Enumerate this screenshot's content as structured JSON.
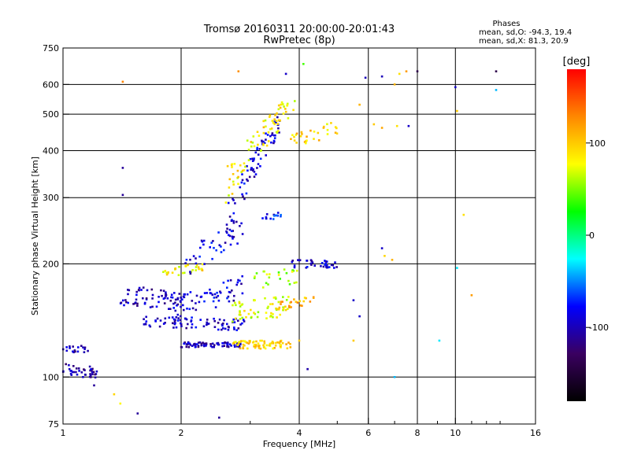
{
  "chart_data": {
    "type": "scatter",
    "title": "Tromsø 20160311 20:00:00-20:01:43",
    "subtitle": "RwPretec (8p)",
    "xlabel": "Frequency [MHz]",
    "ylabel": "Stationary phase Virtual Height [km]",
    "x_scale": "log",
    "y_scale": "log",
    "xlim": [
      1,
      16
    ],
    "ylim": [
      75,
      750
    ],
    "x_ticks": [
      1,
      2,
      4,
      6,
      8,
      10,
      16
    ],
    "x_tick_labels": [
      "1",
      "2",
      "4",
      "6",
      "8",
      "10",
      "16"
    ],
    "x_minor_ticks": [
      3,
      5,
      7,
      9,
      11,
      12,
      13
    ],
    "y_ticks": [
      75,
      100,
      200,
      300,
      400,
      500,
      600,
      750
    ],
    "y_tick_labels": [
      "75",
      "100",
      "200",
      "300",
      "400",
      "500",
      "600",
      "750"
    ],
    "grid": true,
    "colorbar": {
      "label": "[deg]",
      "range": [
        -180,
        180
      ],
      "tick_values": [
        100,
        0,
        -100
      ],
      "tick_labels": [
        "100",
        "0",
        "-100"
      ],
      "colormap": [
        "#000000",
        "#3a0060",
        "#0000ff",
        "#00ffff",
        "#00ff00",
        "#ffff00",
        "#ff8800",
        "#ff0000"
      ]
    },
    "legend": {
      "title": "Phases",
      "lines": [
        "mean, sd,O: -94.3, 19.4",
        "mean, sd,X:  81.3, 20.9"
      ],
      "placement": "top-right"
    },
    "traces": [
      {
        "f": [
          1.0,
          1.22
        ],
        "h": [
          105,
          102
        ],
        "phase": -105,
        "count": 40,
        "h_spread": 4
      },
      {
        "f": [
          1.0,
          1.2
        ],
        "h": [
          120,
          118
        ],
        "phase": -105,
        "count": 18,
        "h_spread": 3
      },
      {
        "f": [
          1.4,
          2.05
        ],
        "h": [
          165,
          160
        ],
        "phase": -100,
        "count": 70,
        "h_spread": 10
      },
      {
        "f": [
          1.6,
          2.9
        ],
        "h": [
          140,
          138
        ],
        "phase": -95,
        "count": 80,
        "h_spread": 5
      },
      {
        "f": [
          2.0,
          2.9
        ],
        "h": [
          122,
          122
        ],
        "phase": -100,
        "count": 70,
        "h_spread": 2
      },
      {
        "f": [
          1.9,
          2.9
        ],
        "h": [
          150,
          175
        ],
        "phase": -90,
        "count": 60,
        "h_spread": 12
      },
      {
        "f": [
          1.8,
          2.3
        ],
        "h": [
          190,
          195
        ],
        "phase": 85,
        "count": 30,
        "h_spread": 6
      },
      {
        "f": [
          2.05,
          2.9
        ],
        "h": [
          200,
          250
        ],
        "phase": -90,
        "count": 40,
        "h_spread": 18
      },
      {
        "f": [
          2.7,
          3.8
        ],
        "h": [
          122,
          122
        ],
        "phase": 95,
        "count": 80,
        "h_spread": 3
      },
      {
        "f": [
          2.7,
          3.8
        ],
        "h": [
          150,
          155
        ],
        "phase": 75,
        "count": 60,
        "h_spread": 10
      },
      {
        "f": [
          2.6,
          3.6
        ],
        "h": [
          250,
          480
        ],
        "phase": -90,
        "count": 80,
        "h_spread": 30
      },
      {
        "f": [
          2.6,
          3.9
        ],
        "h": [
          320,
          540
        ],
        "phase": 85,
        "count": 80,
        "h_spread": 40
      },
      {
        "f": [
          3.5,
          4.4
        ],
        "h": [
          155,
          160
        ],
        "phase": 110,
        "count": 25,
        "h_spread": 4
      },
      {
        "f": [
          3.8,
          5.0
        ],
        "h": [
          200,
          200
        ],
        "phase": -95,
        "count": 35,
        "h_spread": 5
      },
      {
        "f": [
          3.8,
          5.0
        ],
        "h": [
          420,
          460
        ],
        "phase": 95,
        "count": 30,
        "h_spread": 20
      },
      {
        "f": [
          3.2,
          3.6
        ],
        "h": [
          265,
          270
        ],
        "phase": -80,
        "count": 15,
        "h_spread": 5
      },
      {
        "f": [
          3.0,
          4.0
        ],
        "h": [
          180,
          185
        ],
        "phase": 60,
        "count": 25,
        "h_spread": 10
      }
    ],
    "isolated_points": [
      {
        "f": 1.42,
        "h": 610,
        "phase": 130
      },
      {
        "f": 1.42,
        "h": 360,
        "phase": -110
      },
      {
        "f": 1.42,
        "h": 305,
        "phase": -110
      },
      {
        "f": 1.2,
        "h": 95,
        "phase": -110
      },
      {
        "f": 1.35,
        "h": 90,
        "phase": 95
      },
      {
        "f": 1.4,
        "h": 85,
        "phase": 80
      },
      {
        "f": 1.55,
        "h": 80,
        "phase": -110
      },
      {
        "f": 2.5,
        "h": 78,
        "phase": -110
      },
      {
        "f": 2.8,
        "h": 650,
        "phase": 125
      },
      {
        "f": 3.7,
        "h": 640,
        "phase": -95
      },
      {
        "f": 4.1,
        "h": 680,
        "phase": 40
      },
      {
        "f": 5.9,
        "h": 625,
        "phase": -100
      },
      {
        "f": 6.5,
        "h": 630,
        "phase": -100
      },
      {
        "f": 7.0,
        "h": 600,
        "phase": 110
      },
      {
        "f": 7.2,
        "h": 640,
        "phase": 90
      },
      {
        "f": 7.5,
        "h": 650,
        "phase": 120
      },
      {
        "f": 8.0,
        "h": 650,
        "phase": -140
      },
      {
        "f": 10.0,
        "h": 590,
        "phase": -95
      },
      {
        "f": 10.1,
        "h": 510,
        "phase": 100
      },
      {
        "f": 12.7,
        "h": 650,
        "phase": -140
      },
      {
        "f": 12.7,
        "h": 580,
        "phase": -40
      },
      {
        "f": 6.2,
        "h": 470,
        "phase": 100
      },
      {
        "f": 6.5,
        "h": 460,
        "phase": 115
      },
      {
        "f": 7.1,
        "h": 465,
        "phase": 90
      },
      {
        "f": 7.6,
        "h": 465,
        "phase": -95
      },
      {
        "f": 5.7,
        "h": 530,
        "phase": 110
      },
      {
        "f": 6.5,
        "h": 220,
        "phase": -95
      },
      {
        "f": 6.9,
        "h": 205,
        "phase": 110
      },
      {
        "f": 6.6,
        "h": 210,
        "phase": 95
      },
      {
        "f": 5.5,
        "h": 160,
        "phase": -95
      },
      {
        "f": 5.7,
        "h": 145,
        "phase": -95
      },
      {
        "f": 5.5,
        "h": 125,
        "phase": 100
      },
      {
        "f": 7.0,
        "h": 100,
        "phase": -40
      },
      {
        "f": 9.1,
        "h": 125,
        "phase": -30
      },
      {
        "f": 10.5,
        "h": 270,
        "phase": 90
      },
      {
        "f": 10.1,
        "h": 195,
        "phase": -30
      },
      {
        "f": 11.0,
        "h": 165,
        "phase": 120
      },
      {
        "f": 4.2,
        "h": 105,
        "phase": -105
      },
      {
        "f": 4.0,
        "h": 125,
        "phase": 100
      }
    ]
  }
}
